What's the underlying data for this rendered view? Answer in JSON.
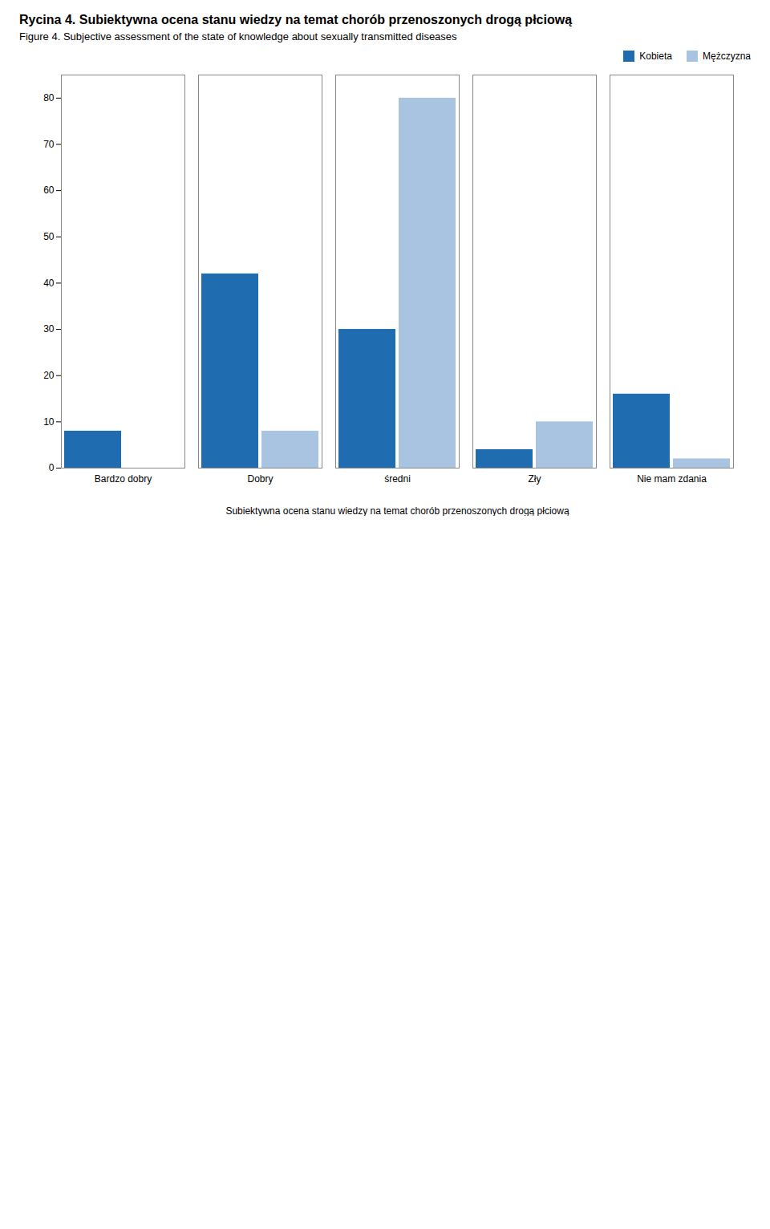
{
  "chart_data": {
    "type": "bar",
    "title": "Rycina 4. Subiektywna ocena stanu wiedzy na temat chorób przenoszonych drogą płciową",
    "subtitle": "Figure 4. Subjective assessment of the state of knowledge about sexually transmitted diseases",
    "x_label": "Subiektywna ocena stanu wiedzy na temat chorób przenoszonych drogą płciową",
    "categories": [
      "Bardzo dobry",
      "Dobry",
      "średni",
      "Zły",
      "Nie mam zdania"
    ],
    "series": [
      {
        "name": "Kobieta",
        "color": "#1F6CB0",
        "values": [
          8,
          42,
          30,
          4,
          16
        ]
      },
      {
        "name": "Mężczyzna",
        "color": "#A8C4E0",
        "values": [
          0,
          8,
          80,
          10,
          2
        ]
      }
    ],
    "ylim": [
      0,
      85
    ],
    "yticks": [
      0,
      10,
      20,
      30,
      40,
      50,
      60,
      70,
      80
    ],
    "legend": "upper right",
    "grid": false
  }
}
